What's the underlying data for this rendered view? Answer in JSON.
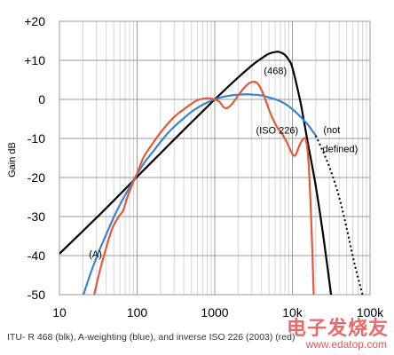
{
  "chart_data": {
    "type": "line",
    "x_scale": "log",
    "xlim": [
      10,
      100000
    ],
    "ylim": [
      -50,
      20
    ],
    "ylabel": "Gain dB",
    "x_tick_labels": [
      {
        "value": 10,
        "label": "10"
      },
      {
        "value": 100,
        "label": "100"
      },
      {
        "value": 1000,
        "label": "1000"
      },
      {
        "value": 10000,
        "label": "10k"
      },
      {
        "value": 100000,
        "label": "100k"
      }
    ],
    "y_tick_labels": [
      {
        "value": 20,
        "label": "+20"
      },
      {
        "value": 10,
        "label": "+10"
      },
      {
        "value": 0,
        "label": "0"
      },
      {
        "value": -10,
        "label": "-10"
      },
      {
        "value": -20,
        "label": "-20"
      },
      {
        "value": -30,
        "label": "-30"
      },
      {
        "value": -40,
        "label": "-40"
      },
      {
        "value": -50,
        "label": "-50"
      }
    ],
    "grid": true,
    "series": [
      {
        "id": "itu-r-468",
        "color": "#000000",
        "style": "solid",
        "points": [
          [
            10,
            -39.5
          ],
          [
            31.5,
            -29.9
          ],
          [
            63,
            -23.9
          ],
          [
            100,
            -19.8
          ],
          [
            200,
            -13.8
          ],
          [
            400,
            -7.8
          ],
          [
            800,
            -1.9
          ],
          [
            1000,
            0
          ],
          [
            2000,
            5.6
          ],
          [
            3150,
            9.0
          ],
          [
            4000,
            10.5
          ],
          [
            5000,
            11.7
          ],
          [
            6300,
            12.2
          ],
          [
            7100,
            12.0
          ],
          [
            8000,
            11.4
          ],
          [
            9000,
            10.1
          ],
          [
            10000,
            8.1
          ],
          [
            12500,
            0.0
          ],
          [
            14000,
            -5.3
          ],
          [
            16000,
            -11.7
          ],
          [
            20000,
            -22.2
          ],
          [
            25000,
            -35.0
          ],
          [
            31500,
            -50.0
          ]
        ]
      },
      {
        "id": "a-weighting",
        "color": "#3a85c8",
        "style": "solid",
        "points": [
          [
            20,
            -50.5
          ],
          [
            25,
            -44.7
          ],
          [
            31.5,
            -39.4
          ],
          [
            40,
            -34.6
          ],
          [
            50,
            -30.2
          ],
          [
            63,
            -26.2
          ],
          [
            80,
            -22.5
          ],
          [
            100,
            -19.1
          ],
          [
            125,
            -16.1
          ],
          [
            160,
            -13.4
          ],
          [
            200,
            -10.9
          ],
          [
            250,
            -8.6
          ],
          [
            315,
            -6.6
          ],
          [
            400,
            -4.8
          ],
          [
            500,
            -3.2
          ],
          [
            630,
            -1.9
          ],
          [
            800,
            -0.8
          ],
          [
            1000,
            0
          ],
          [
            1250,
            0.6
          ],
          [
            1600,
            1.0
          ],
          [
            2000,
            1.2
          ],
          [
            2500,
            1.3
          ],
          [
            3150,
            1.2
          ],
          [
            4000,
            1.0
          ],
          [
            5000,
            0.5
          ],
          [
            6300,
            -0.1
          ],
          [
            8000,
            -1.1
          ],
          [
            10000,
            -2.5
          ],
          [
            12500,
            -4.3
          ],
          [
            16000,
            -6.6
          ],
          [
            20000,
            -9.3
          ]
        ]
      },
      {
        "id": "inverse-iso-226",
        "color": "#e2583a",
        "style": "solid",
        "points": [
          [
            28,
            -50
          ],
          [
            33,
            -44
          ],
          [
            40,
            -38
          ],
          [
            48,
            -33
          ],
          [
            58,
            -30
          ],
          [
            66,
            -28.5
          ],
          [
            75,
            -25
          ],
          [
            90,
            -21
          ],
          [
            100,
            -19
          ],
          [
            120,
            -15
          ],
          [
            150,
            -12
          ],
          [
            200,
            -8.5
          ],
          [
            300,
            -4.5
          ],
          [
            450,
            -1.8
          ],
          [
            600,
            -0.2
          ],
          [
            800,
            0.3
          ],
          [
            1000,
            0
          ],
          [
            1150,
            -0.6
          ],
          [
            1300,
            -2.0
          ],
          [
            1450,
            -2.2
          ],
          [
            1700,
            -1.0
          ],
          [
            2000,
            1.0
          ],
          [
            2400,
            3.0
          ],
          [
            2800,
            4.2
          ],
          [
            3200,
            4.5
          ],
          [
            3600,
            4.0
          ],
          [
            4200,
            1.5
          ],
          [
            5200,
            -3.5
          ],
          [
            6300,
            -7.0
          ],
          [
            7200,
            -8.5
          ],
          [
            8500,
            -11.0
          ],
          [
            10000,
            -14.0
          ],
          [
            11000,
            -14.2
          ],
          [
            12500,
            -11.5
          ],
          [
            14000,
            -10.0
          ],
          [
            15000,
            -10.6
          ],
          [
            16000,
            -15.0
          ],
          [
            17000,
            -25.0
          ],
          [
            18000,
            -38.0
          ],
          [
            18800,
            -50.0
          ]
        ]
      },
      {
        "id": "not-defined-extension",
        "color": "#000000",
        "style": "dotted",
        "points": [
          [
            20000,
            -9.3
          ],
          [
            25000,
            -13.5
          ],
          [
            31500,
            -18.5
          ],
          [
            40000,
            -25.0
          ],
          [
            50000,
            -33.0
          ],
          [
            63000,
            -42.0
          ],
          [
            80000,
            -50.0
          ]
        ]
      }
    ],
    "annotations": [
      {
        "text": "(468)",
        "x": 4300,
        "y": 6.5
      },
      {
        "text": "(ISO 226)",
        "x": 3400,
        "y": -8.8
      },
      {
        "text": "(not",
        "x": 25000,
        "y": -8.6
      },
      {
        "text": "defined)",
        "x": 24500,
        "y": -13.5
      },
      {
        "text": "(A)",
        "x": 24,
        "y": -40.5
      }
    ]
  },
  "caption": "ITU- R 468 (blk), A-weighting (blue), and inverse ISO 226 (2003) (red)",
  "watermark": {
    "chinese_text": "电子发烧友",
    "url": "www.edatop.com"
  }
}
